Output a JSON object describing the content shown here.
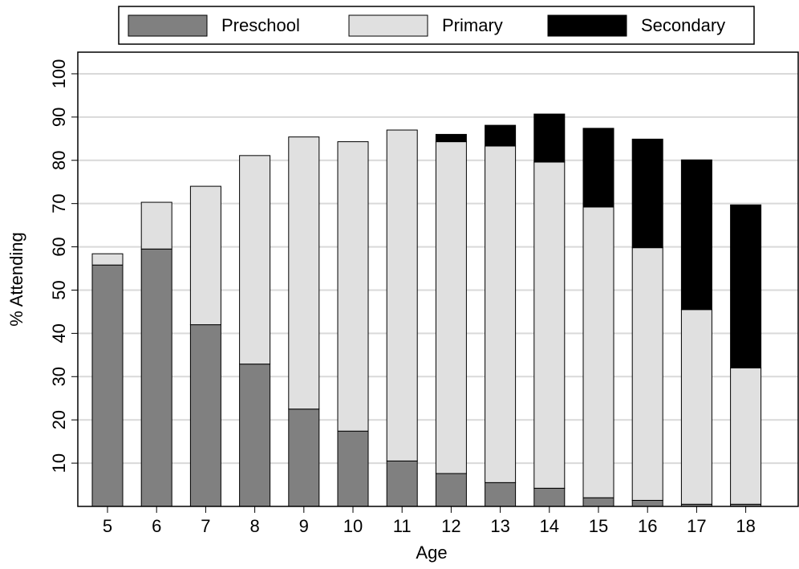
{
  "chart_data": {
    "type": "stacked_bar",
    "x_label": "Age",
    "y_label": "% Attending",
    "categories": [
      "5",
      "6",
      "7",
      "8",
      "9",
      "10",
      "11",
      "12",
      "13",
      "14",
      "15",
      "16",
      "17",
      "18"
    ],
    "series": [
      {
        "name": "Preschool",
        "color": "#808080",
        "values": [
          55.8,
          59.5,
          42.0,
          32.9,
          22.5,
          17.4,
          10.5,
          7.6,
          5.5,
          4.2,
          2.0,
          1.4,
          0.5,
          0.5
        ]
      },
      {
        "name": "Primary",
        "color": "#e0e0e0",
        "values": [
          2.6,
          10.8,
          32.0,
          48.2,
          62.9,
          66.9,
          76.5,
          76.7,
          77.8,
          75.4,
          67.2,
          58.4,
          45.0,
          31.5
        ]
      },
      {
        "name": "Secondary",
        "color": "#000000",
        "values": [
          0,
          0,
          0,
          0,
          0,
          0,
          0,
          1.7,
          4.8,
          11.1,
          18.2,
          25.1,
          34.6,
          37.7
        ]
      }
    ],
    "ylim": [
      0,
      105
    ],
    "yticks": [
      10,
      20,
      30,
      40,
      50,
      60,
      70,
      80,
      90,
      100
    ],
    "grid": true,
    "legend": "top"
  }
}
